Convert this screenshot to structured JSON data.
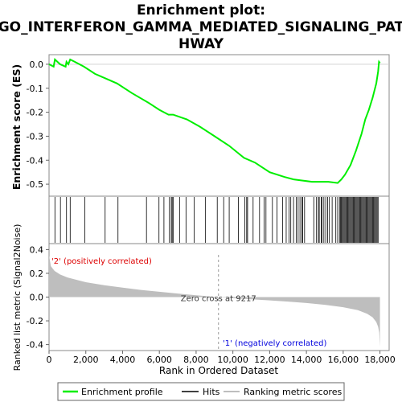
{
  "chart_data": {
    "type": "line",
    "title_lines": [
      "Enrichment plot:",
      "GO_INTERFERON_GAMMA_MEDIATED_SIGNALING_PAT",
      "HWAY"
    ],
    "es_panel": {
      "ylabel": "Enrichment score (ES)",
      "ylim": [
        -0.55,
        0.04
      ],
      "yticks": [
        0.0,
        -0.1,
        -0.2,
        -0.3,
        -0.4,
        -0.5
      ],
      "ytick_labels": [
        "0.0",
        "-0.1",
        "-0.2",
        "-0.3",
        "-0.4",
        "-0.5"
      ],
      "profile": [
        [
          0,
          0.0
        ],
        [
          250,
          -0.01
        ],
        [
          320,
          0.02
        ],
        [
          600,
          0.0
        ],
        [
          900,
          -0.01
        ],
        [
          950,
          0.01
        ],
        [
          1050,
          0.0
        ],
        [
          1150,
          0.02
        ],
        [
          1400,
          0.01
        ],
        [
          1900,
          -0.01
        ],
        [
          2500,
          -0.04
        ],
        [
          3100,
          -0.06
        ],
        [
          3700,
          -0.08
        ],
        [
          4500,
          -0.12
        ],
        [
          5400,
          -0.16
        ],
        [
          6000,
          -0.19
        ],
        [
          6500,
          -0.21
        ],
        [
          6750,
          -0.21
        ],
        [
          7500,
          -0.23
        ],
        [
          8200,
          -0.26
        ],
        [
          9000,
          -0.3
        ],
        [
          9800,
          -0.34
        ],
        [
          10600,
          -0.39
        ],
        [
          11200,
          -0.41
        ],
        [
          12000,
          -0.45
        ],
        [
          12800,
          -0.47
        ],
        [
          13300,
          -0.48
        ],
        [
          13800,
          -0.485
        ],
        [
          14300,
          -0.49
        ],
        [
          14700,
          -0.49
        ],
        [
          15200,
          -0.49
        ],
        [
          15700,
          -0.495
        ],
        [
          15900,
          -0.48
        ],
        [
          16100,
          -0.46
        ],
        [
          16400,
          -0.42
        ],
        [
          16700,
          -0.36
        ],
        [
          17000,
          -0.29
        ],
        [
          17200,
          -0.23
        ],
        [
          17400,
          -0.19
        ],
        [
          17600,
          -0.14
        ],
        [
          17800,
          -0.08
        ],
        [
          17900,
          -0.03
        ],
        [
          17950,
          0.01
        ],
        [
          18000,
          0.005
        ]
      ],
      "min_es": -0.5
    },
    "hits_panel": {
      "hit_ranks": [
        320,
        620,
        950,
        1150,
        1950,
        3050,
        3750,
        5300,
        5980,
        6250,
        6550,
        6650,
        6700,
        6750,
        7100,
        7450,
        7900,
        8500,
        9150,
        9500,
        9800,
        10300,
        10650,
        10750,
        10800,
        11100,
        11450,
        11700,
        11800,
        12150,
        12400,
        12700,
        12900,
        13050,
        13150,
        13300,
        13450,
        13550,
        13650,
        13750,
        13800,
        13900,
        14400,
        14550,
        14650,
        14700,
        14800,
        14850,
        14950,
        15050,
        15150,
        15250,
        15400,
        15600,
        15700,
        15800,
        15850,
        15900,
        15950,
        16000,
        16050,
        16100,
        16150,
        16200,
        16250,
        16300,
        16350,
        16400,
        16450,
        16500,
        16550,
        16600,
        16650,
        16700,
        16750,
        16800,
        16850,
        16900,
        16950,
        17000,
        17050,
        17100,
        17150,
        17200,
        17250,
        17300,
        17350,
        17400,
        17450,
        17500,
        17550,
        17600,
        17650,
        17700,
        17750,
        17800,
        17850,
        17900
      ]
    },
    "metric_panel": {
      "ylabel": "Ranked list metric (Signal2Noise)",
      "ylim": [
        -0.45,
        0.45
      ],
      "yticks": [
        0.4,
        0.2,
        0.0,
        -0.2,
        -0.4
      ],
      "ytick_labels": [
        "0.4",
        "0.2",
        "0.0",
        "-0.2",
        "-0.4"
      ],
      "curve": [
        [
          0,
          0.35
        ],
        [
          100,
          0.26
        ],
        [
          300,
          0.22
        ],
        [
          600,
          0.19
        ],
        [
          1000,
          0.165
        ],
        [
          2000,
          0.125
        ],
        [
          3000,
          0.1
        ],
        [
          4000,
          0.08
        ],
        [
          5000,
          0.06
        ],
        [
          6000,
          0.045
        ],
        [
          7000,
          0.03
        ],
        [
          8000,
          0.015
        ],
        [
          9217,
          0.0
        ],
        [
          10000,
          -0.008
        ],
        [
          11000,
          -0.018
        ],
        [
          12000,
          -0.028
        ],
        [
          13000,
          -0.038
        ],
        [
          14000,
          -0.05
        ],
        [
          15000,
          -0.065
        ],
        [
          16000,
          -0.085
        ],
        [
          16800,
          -0.11
        ],
        [
          17300,
          -0.14
        ],
        [
          17600,
          -0.17
        ],
        [
          17800,
          -0.21
        ],
        [
          17900,
          -0.25
        ],
        [
          17960,
          -0.3
        ],
        [
          18000,
          -0.42
        ]
      ],
      "pos_label": "'2' (positively correlated)",
      "neg_label": "'1' (negatively correlated)",
      "zero_cross_label": "Zero cross at 9217",
      "zero_cross": 9217
    },
    "xaxis": {
      "xlabel": "Rank in Ordered Dataset",
      "xlim": [
        0,
        18500
      ],
      "xticks": [
        0,
        2000,
        4000,
        6000,
        8000,
        10000,
        12000,
        14000,
        16000,
        18000
      ],
      "xtick_labels": [
        "0",
        "2,000",
        "4,000",
        "6,000",
        "8,000",
        "10,000",
        "12,000",
        "14,000",
        "16,000",
        "18,000"
      ],
      "n_genes": 18000
    },
    "legend": {
      "position": "bottom",
      "entries": [
        "Enrichment profile",
        "Hits",
        "Ranking metric scores"
      ]
    }
  },
  "colors": {
    "profile": "#00ee00",
    "hits": "#000000",
    "metric_fill": "#bebebe",
    "zero_line": "#999999",
    "pos_text": "#dd0000",
    "neg_text": "#0000dd",
    "bar_red": "#dd0000",
    "bar_blue": "#1010cc"
  }
}
